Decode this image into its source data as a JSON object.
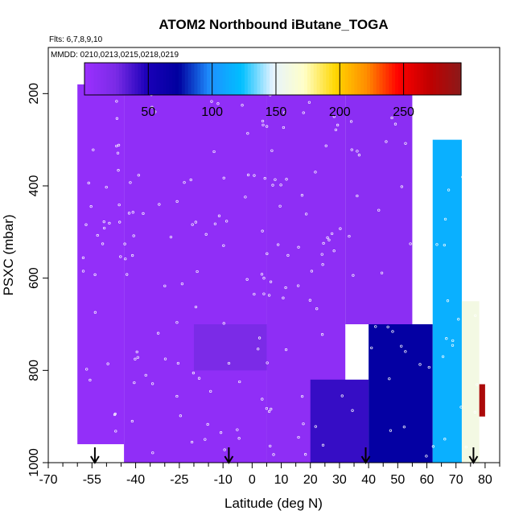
{
  "chart_data": {
    "type": "heatmap",
    "title": "ATOM2 Northbound iButane_TOGA",
    "subtitle_flights": "Flts: 6,7,8,9,10",
    "subtitle_dates": "MMDD: 0210,0213,0215,0218,0219",
    "xlabel": "Latitude (deg N)",
    "ylabel": "PSXC (mbar)",
    "xlim": [
      -70,
      85
    ],
    "ylim": [
      1000,
      100
    ],
    "x_ticks": [
      -70,
      -55,
      -40,
      -25,
      -10,
      0,
      10,
      20,
      30,
      40,
      50,
      60,
      70,
      80
    ],
    "x_minor_ticks": [
      -65,
      -60,
      -50,
      -45,
      -35,
      -30,
      -20,
      -15,
      -5,
      5,
      15,
      25,
      35,
      45,
      55,
      65,
      75,
      85
    ],
    "y_ticks": [
      200,
      400,
      600,
      800,
      1000
    ],
    "colorbar": {
      "min": 0,
      "max": 295,
      "ticks": [
        50,
        100,
        150,
        200,
        250
      ],
      "stops": [
        "#9b30ff",
        "#7a2be6",
        "#1a00b8",
        "#00009f",
        "#1e90ff",
        "#00bfff",
        "#e6f3ff",
        "#ffffc8",
        "#ffd700",
        "#ff8c00",
        "#ff0000",
        "#c00000",
        "#8b1a1a"
      ]
    },
    "arrow_latitudes": [
      -54,
      -8,
      39,
      76
    ],
    "profiles": [
      {
        "lat_range": [
          -60,
          -44
        ],
        "p_range": [
          180,
          960
        ],
        "value": 6
      },
      {
        "lat_range": [
          -44,
          5
        ],
        "p_range": [
          180,
          1000
        ],
        "value": 8
      },
      {
        "lat_range": [
          -20,
          5
        ],
        "p_range": [
          700,
          800
        ],
        "value": 24
      },
      {
        "lat_range": [
          5,
          32
        ],
        "p_range": [
          180,
          1000
        ],
        "value": 10
      },
      {
        "lat_range": [
          20,
          40
        ],
        "p_range": [
          820,
          1000
        ],
        "value": 42
      },
      {
        "lat_range": [
          32,
          55
        ],
        "p_range": [
          180,
          700
        ],
        "value": 12
      },
      {
        "lat_range": [
          40,
          62
        ],
        "p_range": [
          700,
          1000
        ],
        "value": 70
      },
      {
        "lat_range": [
          62,
          72
        ],
        "p_range": [
          300,
          1000
        ],
        "value": 115
      },
      {
        "lat_range": [
          72,
          78
        ],
        "p_range": [
          650,
          1000
        ],
        "value": 160
      },
      {
        "lat_range": [
          78,
          80
        ],
        "p_range": [
          830,
          900
        ],
        "value": 280
      }
    ]
  }
}
